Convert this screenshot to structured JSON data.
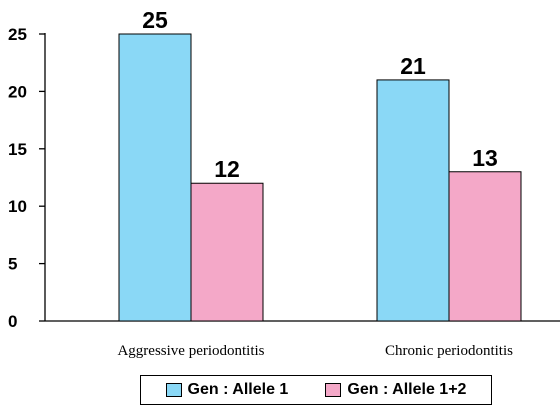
{
  "chart_data": {
    "type": "bar",
    "categories": [
      "Aggressive periodontitis",
      "Chronic periodontitis"
    ],
    "series": [
      {
        "name": "Gen : Allele 1",
        "values": [
          25,
          21
        ],
        "color": "#8ad8f6"
      },
      {
        "name": "Gen : Allele 1+2",
        "values": [
          12,
          13
        ],
        "color": "#f4a8c8"
      }
    ],
    "data_labels": [
      [
        "25",
        "12"
      ],
      [
        "21",
        "13"
      ]
    ],
    "title": "",
    "xlabel": "",
    "ylabel": "",
    "ylim": [
      0,
      25
    ],
    "yticks": [
      0,
      5,
      10,
      15,
      20,
      25
    ],
    "grid": false,
    "legend_position": "bottom"
  }
}
